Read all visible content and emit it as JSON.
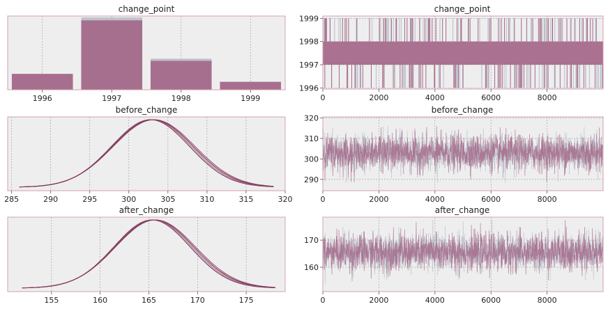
{
  "colors": {
    "panel_bg": "#eeeeee",
    "frame": "#d5a0b0",
    "grid": "#999999",
    "series_a": "#a56a8a",
    "series_b": "#b8bec9",
    "kde_line": "#6b1f43"
  },
  "chart_data": [
    {
      "type": "bar",
      "title": "change_point",
      "categories": [
        "1996",
        "1997",
        "1998",
        "1999"
      ],
      "series": [
        {
          "values": [
            0.22,
            1.0,
            0.43,
            0.11
          ]
        },
        {
          "values": [
            0.22,
            0.96,
            0.4,
            0.11
          ]
        }
      ],
      "ylim": [
        0,
        1.02
      ],
      "grid": true
    },
    {
      "type": "line",
      "title": "change_point",
      "xlim": [
        0,
        10000
      ],
      "ylim": [
        1995.95,
        1999.1
      ],
      "xticks": [
        "0",
        "2000",
        "4000",
        "6000",
        "8000"
      ],
      "yticks": [
        "1996",
        "1997",
        "1998",
        "1999"
      ],
      "value_states": [
        1996,
        1997,
        1998,
        1999
      ],
      "dominant_range": [
        1997,
        1998
      ],
      "grid": true
    },
    {
      "type": "line",
      "title": "before_change",
      "xlim": [
        284.5,
        320
      ],
      "xticks": [
        "285",
        "290",
        "295",
        "300",
        "305",
        "310",
        "315",
        "320"
      ],
      "distribution": {
        "mean": 303.0,
        "sd": 5.1,
        "x_min": 286,
        "x_max": 318.5
      },
      "grid": true
    },
    {
      "type": "line",
      "title": "before_change",
      "xlim": [
        0,
        10000
      ],
      "ylim": [
        284.5,
        320.5
      ],
      "xticks": [
        "0",
        "2000",
        "4000",
        "6000",
        "8000"
      ],
      "yticks": [
        "290",
        "300",
        "310",
        "320"
      ],
      "trace": {
        "mean": 303.0,
        "sd": 5.1,
        "low": 288,
        "high": 316
      },
      "grid": true
    },
    {
      "type": "line",
      "title": "after_change",
      "xlim": [
        150.5,
        179
      ],
      "xticks": [
        "155",
        "160",
        "165",
        "170",
        "175"
      ],
      "distribution": {
        "mean": 165.5,
        "sd": 4.0,
        "x_min": 152,
        "x_max": 178
      },
      "grid": true
    },
    {
      "type": "line",
      "title": "after_change",
      "xlim": [
        0,
        10000
      ],
      "ylim": [
        151,
        178.5
      ],
      "xticks": [
        "0",
        "2000",
        "4000",
        "6000",
        "8000"
      ],
      "yticks": [
        "160",
        "170"
      ],
      "trace": {
        "mean": 165.5,
        "sd": 4.0,
        "low": 152,
        "high": 178
      },
      "grid": true
    }
  ]
}
